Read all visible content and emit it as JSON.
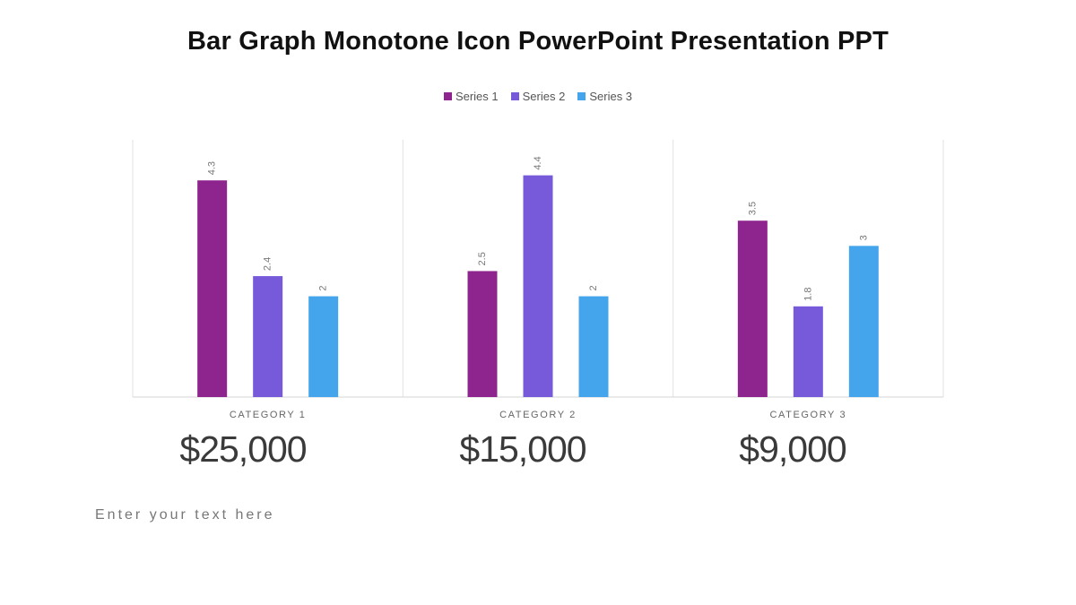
{
  "slide": {
    "title": "Bar Graph Monotone Icon PowerPoint Presentation PPT",
    "body_text": "Enter your text here"
  },
  "amounts": [
    "$25,000",
    "$15,000",
    "$9,000"
  ],
  "chart_data": {
    "type": "bar",
    "categories": [
      "CATEGORY 1",
      "CATEGORY 2",
      "CATEGORY 3"
    ],
    "series": [
      {
        "name": "Series 1",
        "values": [
          4.3,
          2.5,
          3.5
        ],
        "color": "#8E248E"
      },
      {
        "name": "Series 2",
        "values": [
          2.4,
          4.4,
          1.8
        ],
        "color": "#765AD9"
      },
      {
        "name": "Series 3",
        "values": [
          2,
          2,
          3
        ],
        "color": "#45A5EC"
      }
    ],
    "value_labels": [
      [
        "4.3",
        "2.5",
        "3.5"
      ],
      [
        "2.4",
        "4.4",
        "1.8"
      ],
      [
        "2",
        "2",
        "3"
      ]
    ],
    "ylim": [
      0,
      5
    ],
    "grid": false,
    "legend_position": "top-center",
    "title": "",
    "xlabel": "",
    "ylabel": ""
  }
}
